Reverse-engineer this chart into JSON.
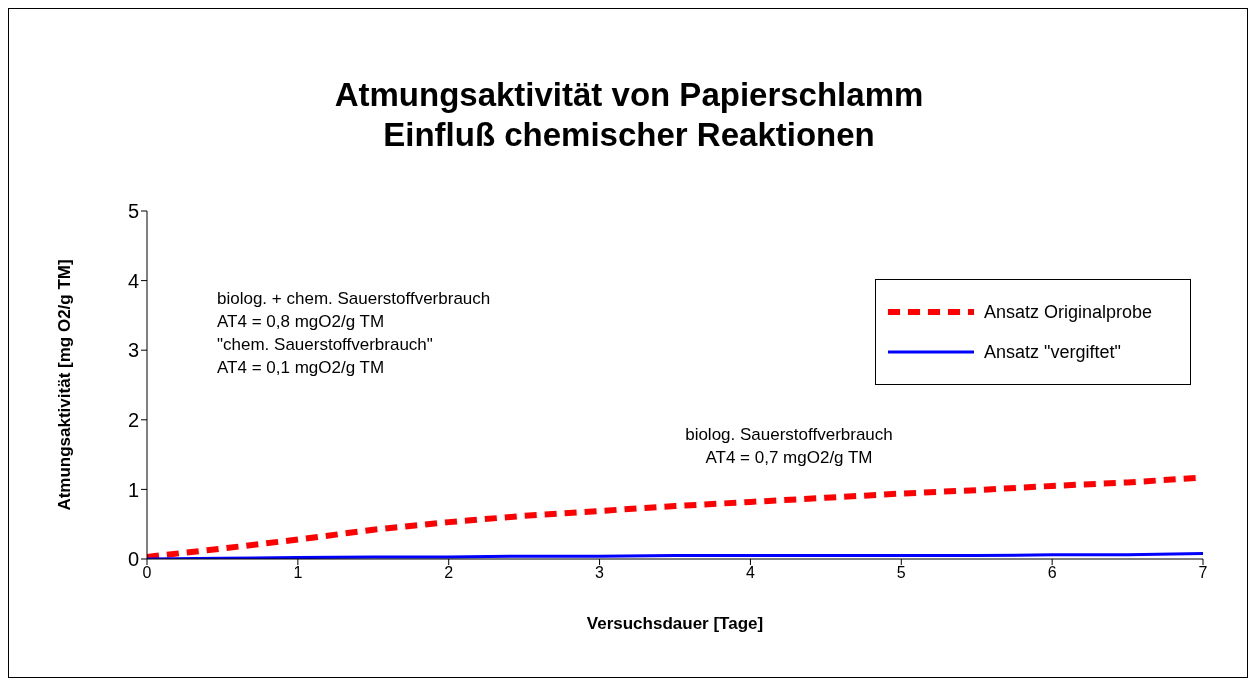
{
  "chart_data": {
    "type": "line",
    "title": "Atmungsaktivität von Papierschlamm\nEinfluß chemischer Reaktionen",
    "xlabel": "Versuchsdauer [Tage]",
    "ylabel": "Atmungsaktivität [mg O2/g TM]",
    "x": [
      0,
      0.5,
      1,
      1.5,
      2,
      2.5,
      3,
      3.5,
      4,
      4.5,
      5,
      5.5,
      6,
      6.5,
      7
    ],
    "series": [
      {
        "name": "Ansatz Originalprobe",
        "color": "#ff0000",
        "line_style": "dashed",
        "values": [
          0.03,
          0.15,
          0.28,
          0.42,
          0.53,
          0.62,
          0.69,
          0.76,
          0.82,
          0.88,
          0.94,
          0.99,
          1.05,
          1.1,
          1.17
        ]
      },
      {
        "name": "Ansatz \"vergiftet\"",
        "color": "#0000ff",
        "line_style": "solid",
        "values": [
          0,
          0.01,
          0.02,
          0.03,
          0.03,
          0.04,
          0.04,
          0.05,
          0.05,
          0.05,
          0.05,
          0.05,
          0.06,
          0.06,
          0.08
        ]
      }
    ],
    "xlim": [
      0,
      7
    ],
    "xticks": [
      0,
      1,
      2,
      3,
      4,
      5,
      6,
      7
    ],
    "ylim": [
      0,
      5
    ],
    "yticks": [
      0,
      1,
      2,
      3,
      4,
      5
    ],
    "grid": false,
    "legend": "top right",
    "marker": "none",
    "annotations": [
      "biolog. + chem. Sauerstoffverbrauch\nAT4 = 0,8 mgO2/g TM\n\"chem. Sauerstoffverbrauch\"\nAT4 = 0,1 mgO2/g TM",
      "biolog. Sauerstoffverbrauch\nAT4 = 0,7 mgO2/g TM"
    ]
  }
}
